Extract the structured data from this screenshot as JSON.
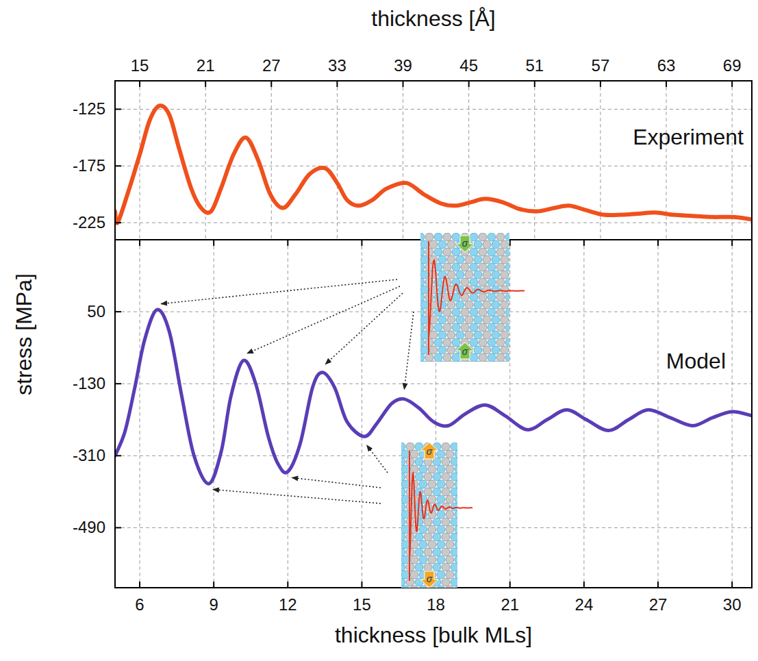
{
  "chart_data": [
    {
      "type": "line",
      "title": "Experiment",
      "xlabel": "thickness [Å]",
      "x": [
        12.75,
        12.98,
        13.88,
        15,
        15.9,
        16.8,
        17.7,
        18.6,
        19.7,
        20.6,
        21.5,
        22.4,
        23.55,
        24.68,
        25.8,
        26.9,
        28.05,
        29.2,
        30.5,
        31.9,
        33,
        33.9,
        35,
        36.2,
        37.5,
        39.3,
        40.9,
        42.45,
        43.8,
        45.15,
        46.5,
        48.1,
        49.65,
        51.2,
        52.8,
        54.15,
        55.7,
        57.3,
        58.9,
        60.45,
        62,
        63.6,
        65.4,
        67.2,
        69,
        70.8
      ],
      "values": [
        -215,
        -225,
        -200,
        -165,
        -135,
        -122,
        -130,
        -160,
        -195,
        -212,
        -215,
        -195,
        -165,
        -150,
        -170,
        -200,
        -212,
        -200,
        -182,
        -177,
        -190,
        -205,
        -210,
        -205,
        -195,
        -190,
        -200,
        -208,
        -210,
        -207,
        -204,
        -207,
        -213,
        -215,
        -212,
        -210,
        -214,
        -218,
        -218,
        -217,
        -216,
        -218,
        -219,
        -220,
        -220,
        -222
      ],
      "color": "#f0501c",
      "xlim": [
        12.75,
        70.8
      ],
      "xticks": [
        15,
        21,
        27,
        33,
        39,
        45,
        51,
        57,
        63,
        69
      ],
      "ylim": [
        -240,
        -100
      ],
      "yticks": [
        -225,
        -175,
        -125
      ],
      "grid": true
    },
    {
      "type": "line",
      "title": "Model",
      "xlabel": "thickness [bulk MLs]",
      "ylabel": "stress [MPa]",
      "x": [
        5.0,
        5.4,
        5.8,
        6.2,
        6.7,
        7.2,
        7.7,
        8.2,
        8.8,
        9.3,
        9.7,
        10.2,
        10.7,
        11.2,
        11.6,
        12.0,
        12.5,
        13.0,
        13.4,
        13.9,
        14.4,
        15.1,
        15.6,
        16.2,
        16.7,
        17.3,
        17.9,
        18.5,
        19.2,
        20.0,
        20.8,
        21.7,
        22.5,
        23.3,
        24.1,
        25.0,
        25.8,
        26.6,
        27.5,
        28.4,
        29.2,
        30.0,
        30.8
      ],
      "values": [
        -310,
        -250,
        -140,
        -20,
        55,
        0,
        -160,
        -310,
        -380,
        -300,
        -160,
        -72,
        -130,
        -260,
        -330,
        -350,
        -280,
        -140,
        -102,
        -140,
        -225,
        -262,
        -230,
        -180,
        -168,
        -190,
        -225,
        -235,
        -205,
        -183,
        -210,
        -245,
        -220,
        -195,
        -220,
        -247,
        -220,
        -195,
        -215,
        -235,
        -215,
        -200,
        -210
      ],
      "color": "#5a3db6",
      "xlim": [
        5,
        30.8
      ],
      "xticks": [
        6,
        9,
        12,
        15,
        18,
        21,
        24,
        27,
        30
      ],
      "ylim": [
        -640,
        230
      ],
      "yticks": [
        -490,
        -310,
        -130,
        50
      ],
      "grid": true,
      "annotations": [
        "σ",
        "σ",
        "σ",
        "σ"
      ]
    }
  ]
}
